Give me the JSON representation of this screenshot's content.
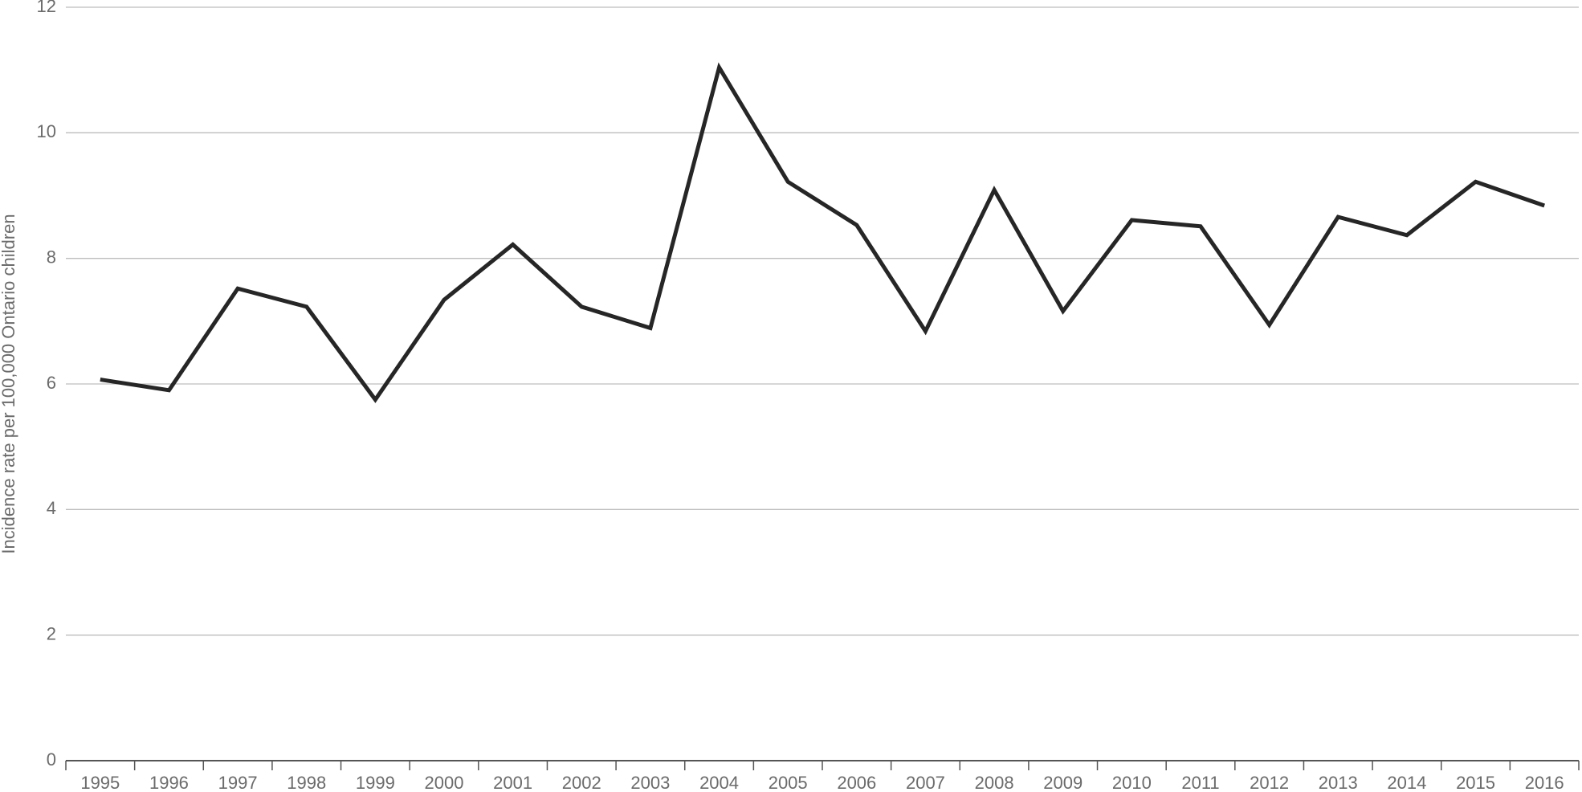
{
  "chart_data": {
    "type": "line",
    "y_label": "Incidence rate per 100,000 Ontario children",
    "categories": [
      "1995",
      "1996",
      "1997",
      "1998",
      "1999",
      "2000",
      "2001",
      "2002",
      "2003",
      "2004",
      "2005",
      "2006",
      "2007",
      "2008",
      "2009",
      "2010",
      "2011",
      "2012",
      "2013",
      "2014",
      "2015",
      "2016"
    ],
    "values": [
      6.07,
      5.9,
      7.52,
      7.23,
      5.75,
      7.34,
      8.22,
      7.23,
      6.89,
      11.04,
      9.22,
      8.53,
      6.84,
      9.09,
      7.16,
      8.61,
      8.51,
      6.94,
      8.66,
      8.37,
      9.22,
      8.84
    ],
    "color": "#262626",
    "ylim": [
      0,
      12
    ],
    "yticks": [
      0,
      2,
      4,
      6,
      8,
      10,
      12
    ],
    "grid": true
  }
}
